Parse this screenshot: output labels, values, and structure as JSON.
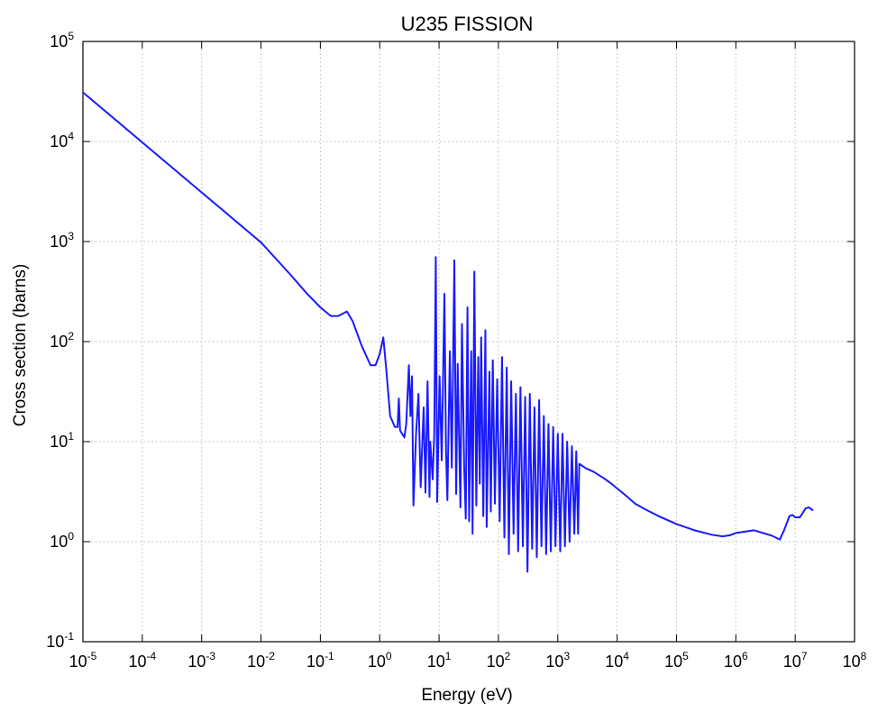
{
  "chart_data": {
    "type": "line",
    "title": "U235 FISSION",
    "xlabel": "Energy (eV)",
    "ylabel": "Cross section (barns)",
    "x_scale": "log",
    "y_scale": "log",
    "xlim": [
      1e-05,
      100000000.0
    ],
    "ylim": [
      0.1,
      100000
    ],
    "grid": true,
    "grid_style": "dotted",
    "x_ticks": [
      {
        "base": "10",
        "exp": "-5",
        "value": 1e-05
      },
      {
        "base": "10",
        "exp": "-4",
        "value": 0.0001
      },
      {
        "base": "10",
        "exp": "-3",
        "value": 0.001
      },
      {
        "base": "10",
        "exp": "-2",
        "value": 0.01
      },
      {
        "base": "10",
        "exp": "-1",
        "value": 0.1
      },
      {
        "base": "10",
        "exp": "0",
        "value": 1
      },
      {
        "base": "10",
        "exp": "1",
        "value": 10
      },
      {
        "base": "10",
        "exp": "2",
        "value": 100
      },
      {
        "base": "10",
        "exp": "3",
        "value": 1000
      },
      {
        "base": "10",
        "exp": "4",
        "value": 10000
      },
      {
        "base": "10",
        "exp": "5",
        "value": 100000
      },
      {
        "base": "10",
        "exp": "6",
        "value": 1000000
      },
      {
        "base": "10",
        "exp": "7",
        "value": 10000000
      },
      {
        "base": "10",
        "exp": "8",
        "value": 100000000
      }
    ],
    "y_ticks": [
      {
        "base": "10",
        "exp": "-1",
        "value": 0.1
      },
      {
        "base": "10",
        "exp": "0",
        "value": 1
      },
      {
        "base": "10",
        "exp": "1",
        "value": 10
      },
      {
        "base": "10",
        "exp": "2",
        "value": 100
      },
      {
        "base": "10",
        "exp": "3",
        "value": 1000
      },
      {
        "base": "10",
        "exp": "4",
        "value": 10000
      },
      {
        "base": "10",
        "exp": "5",
        "value": 100000
      }
    ],
    "series": [
      {
        "color": "#1a1aff",
        "points": [
          [
            1e-05,
            31000
          ],
          [
            0.0001,
            9800
          ],
          [
            0.001,
            3100
          ],
          [
            0.01,
            980
          ],
          [
            0.03,
            480
          ],
          [
            0.06,
            300
          ],
          [
            0.1,
            220
          ],
          [
            0.15,
            180
          ],
          [
            0.2,
            180
          ],
          [
            0.28,
            200
          ],
          [
            0.35,
            160
          ],
          [
            0.5,
            90
          ],
          [
            0.7,
            58
          ],
          [
            0.85,
            58
          ],
          [
            1.0,
            75
          ],
          [
            1.15,
            110
          ],
          [
            1.3,
            50
          ],
          [
            1.5,
            18
          ],
          [
            1.8,
            14
          ],
          [
            2.0,
            14
          ],
          [
            2.1,
            27
          ],
          [
            2.2,
            13
          ],
          [
            2.6,
            11
          ],
          [
            2.8,
            15
          ],
          [
            3.1,
            58
          ],
          [
            3.3,
            18
          ],
          [
            3.5,
            45
          ],
          [
            3.7,
            2.3
          ],
          [
            4.1,
            12
          ],
          [
            4.5,
            30
          ],
          [
            4.9,
            3.5
          ],
          [
            5.5,
            22
          ],
          [
            5.9,
            3.1
          ],
          [
            6.4,
            40
          ],
          [
            6.9,
            2.8
          ],
          [
            7.1,
            10
          ],
          [
            7.8,
            4.2
          ],
          [
            8.3,
            12
          ],
          [
            8.8,
            700
          ],
          [
            9.3,
            2.5
          ],
          [
            10.2,
            45
          ],
          [
            11.1,
            6.5
          ],
          [
            12.3,
            300
          ],
          [
            13.1,
            8
          ],
          [
            13.8,
            2.6
          ],
          [
            15.2,
            80
          ],
          [
            16.4,
            5.5
          ],
          [
            18.1,
            650
          ],
          [
            19.4,
            3
          ],
          [
            20.6,
            60
          ],
          [
            22.9,
            2.2
          ],
          [
            24.3,
            150
          ],
          [
            26.5,
            5.5
          ],
          [
            28.2,
            1.7
          ],
          [
            30.1,
            220
          ],
          [
            32.1,
            1.6
          ],
          [
            34.8,
            80
          ],
          [
            36.7,
            1.2
          ],
          [
            39.3,
            500
          ],
          [
            42.4,
            2.3
          ],
          [
            45.7,
            70
          ],
          [
            48.5,
            3.8
          ],
          [
            51.2,
            110
          ],
          [
            55.6,
            1.8
          ],
          [
            60.3,
            130
          ],
          [
            63.4,
            1.4
          ],
          [
            70.5,
            50
          ],
          [
            74.4,
            2
          ],
          [
            80.4,
            65
          ],
          [
            87.2,
            2.4
          ],
          [
            95.3,
            42
          ],
          [
            105,
            1.6
          ],
          [
            115,
            70
          ],
          [
            126,
            1.1
          ],
          [
            138,
            55
          ],
          [
            150,
            0.75
          ],
          [
            164,
            40
          ],
          [
            180,
            1.2
          ],
          [
            197,
            30
          ],
          [
            215,
            0.8
          ],
          [
            235,
            35
          ],
          [
            258,
            0.9
          ],
          [
            282,
            28
          ],
          [
            309,
            0.5
          ],
          [
            338,
            30
          ],
          [
            370,
            0.85
          ],
          [
            405,
            22
          ],
          [
            443,
            0.7
          ],
          [
            485,
            26
          ],
          [
            531,
            0.9
          ],
          [
            582,
            18
          ],
          [
            637,
            0.75
          ],
          [
            697,
            15
          ],
          [
            763,
            0.8
          ],
          [
            836,
            14
          ],
          [
            915,
            0.9
          ],
          [
            1000,
            12
          ],
          [
            1100,
            0.8
          ],
          [
            1200,
            12
          ],
          [
            1320,
            0.9
          ],
          [
            1440,
            10
          ],
          [
            1580,
            1.0
          ],
          [
            1730,
            9
          ],
          [
            1900,
            1.2
          ],
          [
            2050,
            8
          ],
          [
            2200,
            1.2
          ],
          [
            2300,
            6
          ],
          [
            3000,
            5.4
          ],
          [
            4000,
            5
          ],
          [
            5000,
            4.6
          ],
          [
            6000,
            4.3
          ],
          [
            8000,
            3.8
          ],
          [
            10000,
            3.4
          ],
          [
            13000,
            3.0
          ],
          [
            16000,
            2.7
          ],
          [
            20000,
            2.4
          ],
          [
            30000,
            2.1
          ],
          [
            50000,
            1.8
          ],
          [
            100000,
            1.5
          ],
          [
            200000,
            1.3
          ],
          [
            400000,
            1.17
          ],
          [
            600000,
            1.13
          ],
          [
            800000,
            1.16
          ],
          [
            1000000,
            1.22
          ],
          [
            2000000,
            1.3
          ],
          [
            4000000,
            1.15
          ],
          [
            5500000,
            1.05
          ],
          [
            6500000,
            1.3
          ],
          [
            8000000,
            1.8
          ],
          [
            9000000,
            1.85
          ],
          [
            10000000,
            1.75
          ],
          [
            12000000,
            1.75
          ],
          [
            15000000,
            2.15
          ],
          [
            17000000,
            2.2
          ],
          [
            20000000,
            2.05
          ]
        ]
      }
    ]
  }
}
